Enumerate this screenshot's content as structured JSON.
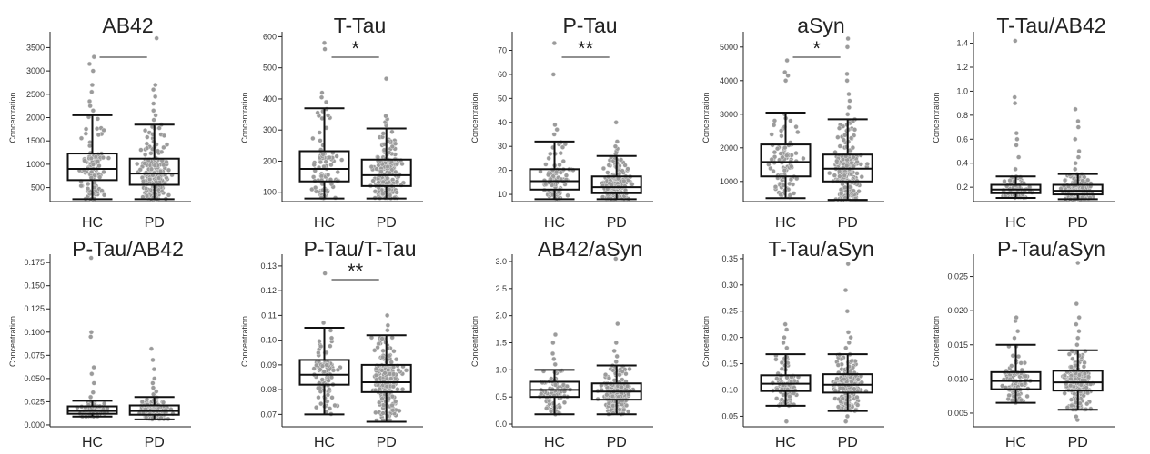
{
  "chart_data": [
    {
      "type": "box",
      "title": "AB42",
      "ylabel": "Concentration",
      "categories": [
        "HC",
        "PD"
      ],
      "ylim": [
        200,
        3800
      ],
      "yticks": [
        500,
        1000,
        1500,
        2000,
        2500,
        3000,
        3500
      ],
      "significance": "",
      "boxes": [
        {
          "min": 250,
          "q1": 660,
          "median": 900,
          "q3": 1230,
          "max": 2050,
          "outliers": [
            2150,
            2250,
            2350,
            2550,
            2700,
            3000,
            3150,
            3300
          ],
          "n": 90
        },
        {
          "min": 250,
          "q1": 560,
          "median": 800,
          "q3": 1120,
          "max": 1850,
          "outliers": [
            1950,
            2050,
            2150,
            2300,
            2450,
            2600,
            2700,
            3700
          ],
          "n": 200
        }
      ]
    },
    {
      "type": "box",
      "title": "T-Tau",
      "ylabel": "Concentration",
      "categories": [
        "HC",
        "PD"
      ],
      "ylim": [
        70,
        610
      ],
      "yticks": [
        100,
        200,
        300,
        400,
        500,
        600
      ],
      "significance": "*",
      "boxes": [
        {
          "min": 80,
          "q1": 135,
          "median": 175,
          "q3": 232,
          "max": 370,
          "outliers": [
            390,
            405,
            420,
            560,
            580
          ],
          "n": 90
        },
        {
          "min": 80,
          "q1": 120,
          "median": 155,
          "q3": 205,
          "max": 305,
          "outliers": [
            315,
            325,
            335,
            345,
            465
          ],
          "n": 200
        }
      ]
    },
    {
      "type": "box",
      "title": "P-Tau",
      "ylabel": "Concentration",
      "categories": [
        "HC",
        "PD"
      ],
      "ylim": [
        7,
        77
      ],
      "yticks": [
        10,
        20,
        30,
        40,
        50,
        60,
        70
      ],
      "significance": "**",
      "boxes": [
        {
          "min": 8,
          "q1": 12,
          "median": 15.5,
          "q3": 20.5,
          "max": 32,
          "outliers": [
            35,
            37,
            39,
            60,
            73
          ],
          "n": 90
        },
        {
          "min": 8,
          "q1": 10.5,
          "median": 13,
          "q3": 17.5,
          "max": 26,
          "outliers": [
            27,
            28,
            29,
            30,
            32,
            40
          ],
          "n": 200
        }
      ]
    },
    {
      "type": "box",
      "title": "aSyn",
      "ylabel": "Concentration",
      "categories": [
        "HC",
        "PD"
      ],
      "ylim": [
        400,
        5400
      ],
      "yticks": [
        1000,
        2000,
        3000,
        4000,
        5000
      ],
      "significance": "*",
      "boxes": [
        {
          "min": 500,
          "q1": 1150,
          "median": 1580,
          "q3": 2100,
          "max": 3050,
          "outliers": [
            4000,
            4150,
            4250,
            4600
          ],
          "n": 90
        },
        {
          "min": 450,
          "q1": 1000,
          "median": 1380,
          "q3": 1800,
          "max": 2850,
          "outliers": [
            3000,
            3200,
            3400,
            3600,
            4000,
            4200,
            5000,
            5250
          ],
          "n": 200
        }
      ]
    },
    {
      "type": "box",
      "title": "T-Tau/AB42",
      "ylabel": "Concentration",
      "categories": [
        "HC",
        "PD"
      ],
      "ylim": [
        0.08,
        1.48
      ],
      "yticks": [
        0.2,
        0.4,
        0.6,
        0.8,
        1.0,
        1.2,
        1.4
      ],
      "significance": "",
      "boxes": [
        {
          "min": 0.11,
          "q1": 0.15,
          "median": 0.18,
          "q3": 0.22,
          "max": 0.29,
          "outliers": [
            0.35,
            0.45,
            0.55,
            0.6,
            0.65,
            0.9,
            0.95,
            1.42
          ],
          "n": 90
        },
        {
          "min": 0.1,
          "q1": 0.14,
          "median": 0.17,
          "q3": 0.22,
          "max": 0.31,
          "outliers": [
            0.35,
            0.4,
            0.45,
            0.5,
            0.6,
            0.7,
            0.75,
            0.85
          ],
          "n": 200
        }
      ]
    },
    {
      "type": "box",
      "title": "P-Tau/AB42",
      "ylabel": "Concentration",
      "categories": [
        "HC",
        "PD"
      ],
      "ylim": [
        -0.002,
        0.182
      ],
      "yticks": [
        0.0,
        0.025,
        0.05,
        0.075,
        0.1,
        0.125,
        0.15,
        0.175
      ],
      "significance": "",
      "boxes": [
        {
          "min": 0.009,
          "q1": 0.012,
          "median": 0.015,
          "q3": 0.02,
          "max": 0.026,
          "outliers": [
            0.03,
            0.035,
            0.045,
            0.055,
            0.062,
            0.095,
            0.1,
            0.18
          ],
          "n": 90
        },
        {
          "min": 0.006,
          "q1": 0.011,
          "median": 0.015,
          "q3": 0.021,
          "max": 0.03,
          "outliers": [
            0.033,
            0.036,
            0.04,
            0.045,
            0.05,
            0.06,
            0.07,
            0.082
          ],
          "n": 200
        }
      ]
    },
    {
      "type": "box",
      "title": "P-Tau/T-Tau",
      "ylabel": "Concentration",
      "categories": [
        "HC",
        "PD"
      ],
      "ylim": [
        0.065,
        0.134
      ],
      "yticks": [
        0.07,
        0.08,
        0.09,
        0.1,
        0.11,
        0.12,
        0.13
      ],
      "significance": "**",
      "boxes": [
        {
          "min": 0.07,
          "q1": 0.082,
          "median": 0.086,
          "q3": 0.092,
          "max": 0.105,
          "outliers": [
            0.107,
            0.127
          ],
          "n": 90
        },
        {
          "min": 0.067,
          "q1": 0.079,
          "median": 0.083,
          "q3": 0.09,
          "max": 0.102,
          "outliers": [
            0.104,
            0.106,
            0.11
          ],
          "n": 200
        }
      ]
    },
    {
      "type": "box",
      "title": "AB42/aSyn",
      "ylabel": "Concentration",
      "categories": [
        "HC",
        "PD"
      ],
      "ylim": [
        -0.05,
        3.1
      ],
      "yticks": [
        0.0,
        0.5,
        1.0,
        1.5,
        2.0,
        2.5,
        3.0
      ],
      "significance": "",
      "boxes": [
        {
          "min": 0.18,
          "q1": 0.5,
          "median": 0.63,
          "q3": 0.78,
          "max": 1.0,
          "outliers": [
            1.1,
            1.2,
            1.3,
            1.5,
            1.65
          ],
          "n": 90
        },
        {
          "min": 0.18,
          "q1": 0.45,
          "median": 0.6,
          "q3": 0.75,
          "max": 1.08,
          "outliers": [
            1.15,
            1.25,
            1.35,
            1.5,
            1.85,
            3.05
          ],
          "n": 200
        }
      ]
    },
    {
      "type": "box",
      "title": "T-Tau/aSyn",
      "ylabel": "Concentration",
      "categories": [
        "HC",
        "PD"
      ],
      "ylim": [
        0.03,
        0.355
      ],
      "yticks": [
        0.05,
        0.1,
        0.15,
        0.2,
        0.25,
        0.3,
        0.35
      ],
      "significance": "",
      "boxes": [
        {
          "min": 0.07,
          "q1": 0.098,
          "median": 0.112,
          "q3": 0.128,
          "max": 0.168,
          "outliers": [
            0.04,
            0.18,
            0.19,
            0.2,
            0.215,
            0.225
          ],
          "n": 90
        },
        {
          "min": 0.06,
          "q1": 0.095,
          "median": 0.11,
          "q3": 0.13,
          "max": 0.168,
          "outliers": [
            0.04,
            0.05,
            0.18,
            0.19,
            0.2,
            0.21,
            0.25,
            0.29,
            0.34
          ],
          "n": 200
        }
      ]
    },
    {
      "type": "box",
      "title": "P-Tau/aSyn",
      "ylabel": "Concentration",
      "categories": [
        "HC",
        "PD"
      ],
      "ylim": [
        0.003,
        0.028
      ],
      "yticks": [
        0.005,
        0.01,
        0.015,
        0.02,
        0.025
      ],
      "significance": "",
      "boxes": [
        {
          "min": 0.0065,
          "q1": 0.0085,
          "median": 0.0097,
          "q3": 0.011,
          "max": 0.015,
          "outliers": [
            0.016,
            0.017,
            0.0185,
            0.019
          ],
          "n": 90
        },
        {
          "min": 0.0055,
          "q1": 0.0083,
          "median": 0.0095,
          "q3": 0.0112,
          "max": 0.0142,
          "outliers": [
            0.004,
            0.0045,
            0.015,
            0.016,
            0.017,
            0.018,
            0.019,
            0.021,
            0.027
          ],
          "n": 200
        }
      ]
    }
  ],
  "colors": {
    "dots": "#9b9b9b",
    "box": "#111111",
    "axis": "#222222"
  }
}
